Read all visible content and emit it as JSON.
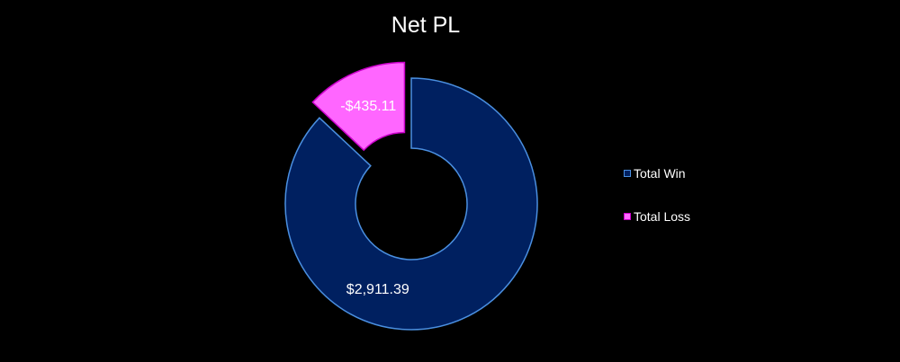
{
  "chart_data": {
    "type": "pie",
    "subtype": "donut",
    "title": "Net PL",
    "categories": [
      "Total Win",
      "Total Loss"
    ],
    "values": [
      2911.39,
      -435.11
    ],
    "value_labels": [
      "$2,911.39",
      "-$435.11"
    ],
    "exploded": [
      false,
      true
    ],
    "colors": {
      "Total Win": {
        "fill": "#002060",
        "stroke": "#4a8fe0"
      },
      "Total Loss": {
        "fill": "#ff66ff",
        "stroke": "#cc00cc"
      }
    },
    "legend_position": "right",
    "background": "#000000"
  }
}
